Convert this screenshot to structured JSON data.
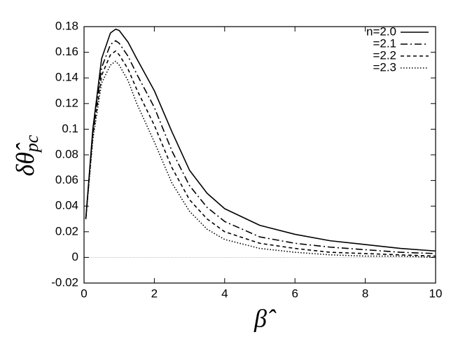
{
  "chart_data": {
    "type": "line",
    "xlabel": "β̂",
    "ylabel": {
      "main": "δθ̂",
      "sub": "pc"
    },
    "x": [
      0.05,
      0.25,
      0.5,
      0.75,
      0.9,
      1,
      1.25,
      1.5,
      2,
      2.5,
      3,
      3.5,
      4,
      5,
      6,
      7,
      8,
      9,
      10
    ],
    "series": [
      {
        "name": "n=2.0",
        "color": "#000000",
        "dash": "solid",
        "values": [
          0.03,
          0.1,
          0.155,
          0.175,
          0.178,
          0.177,
          0.168,
          0.155,
          0.13,
          0.098,
          0.068,
          0.05,
          0.038,
          0.025,
          0.018,
          0.013,
          0.01,
          0.007,
          0.005
        ]
      },
      {
        "name": "=2.1",
        "color": "#000000",
        "dash": "dashdot",
        "values": [
          0.03,
          0.098,
          0.148,
          0.166,
          0.169,
          0.167,
          0.157,
          0.143,
          0.117,
          0.083,
          0.056,
          0.039,
          0.028,
          0.016,
          0.011,
          0.008,
          0.006,
          0.004,
          0.003
        ]
      },
      {
        "name": "=2.2",
        "color": "#000000",
        "dash": "dashed",
        "values": [
          0.03,
          0.095,
          0.142,
          0.158,
          0.161,
          0.158,
          0.147,
          0.131,
          0.103,
          0.07,
          0.045,
          0.03,
          0.02,
          0.011,
          0.007,
          0.004,
          0.003,
          0.002,
          0.001
        ]
      },
      {
        "name": "=2.3",
        "color": "#000000",
        "dash": "dotted",
        "values": [
          0.03,
          0.092,
          0.136,
          0.15,
          0.153,
          0.15,
          0.138,
          0.12,
          0.09,
          0.058,
          0.036,
          0.022,
          0.014,
          0.007,
          0.004,
          0.002,
          0.001,
          0.001,
          0
        ]
      }
    ],
    "xlim": [
      0,
      10
    ],
    "xticks": [
      0,
      2,
      4,
      6,
      8,
      10
    ],
    "ylim": [
      -0.02,
      0.18
    ],
    "yticks": [
      -0.02,
      0,
      0.02,
      0.04,
      0.06,
      0.08,
      0.1,
      0.12,
      0.14,
      0.16,
      0.18
    ],
    "grid": false,
    "zero_line": true,
    "legend": "upper right"
  }
}
